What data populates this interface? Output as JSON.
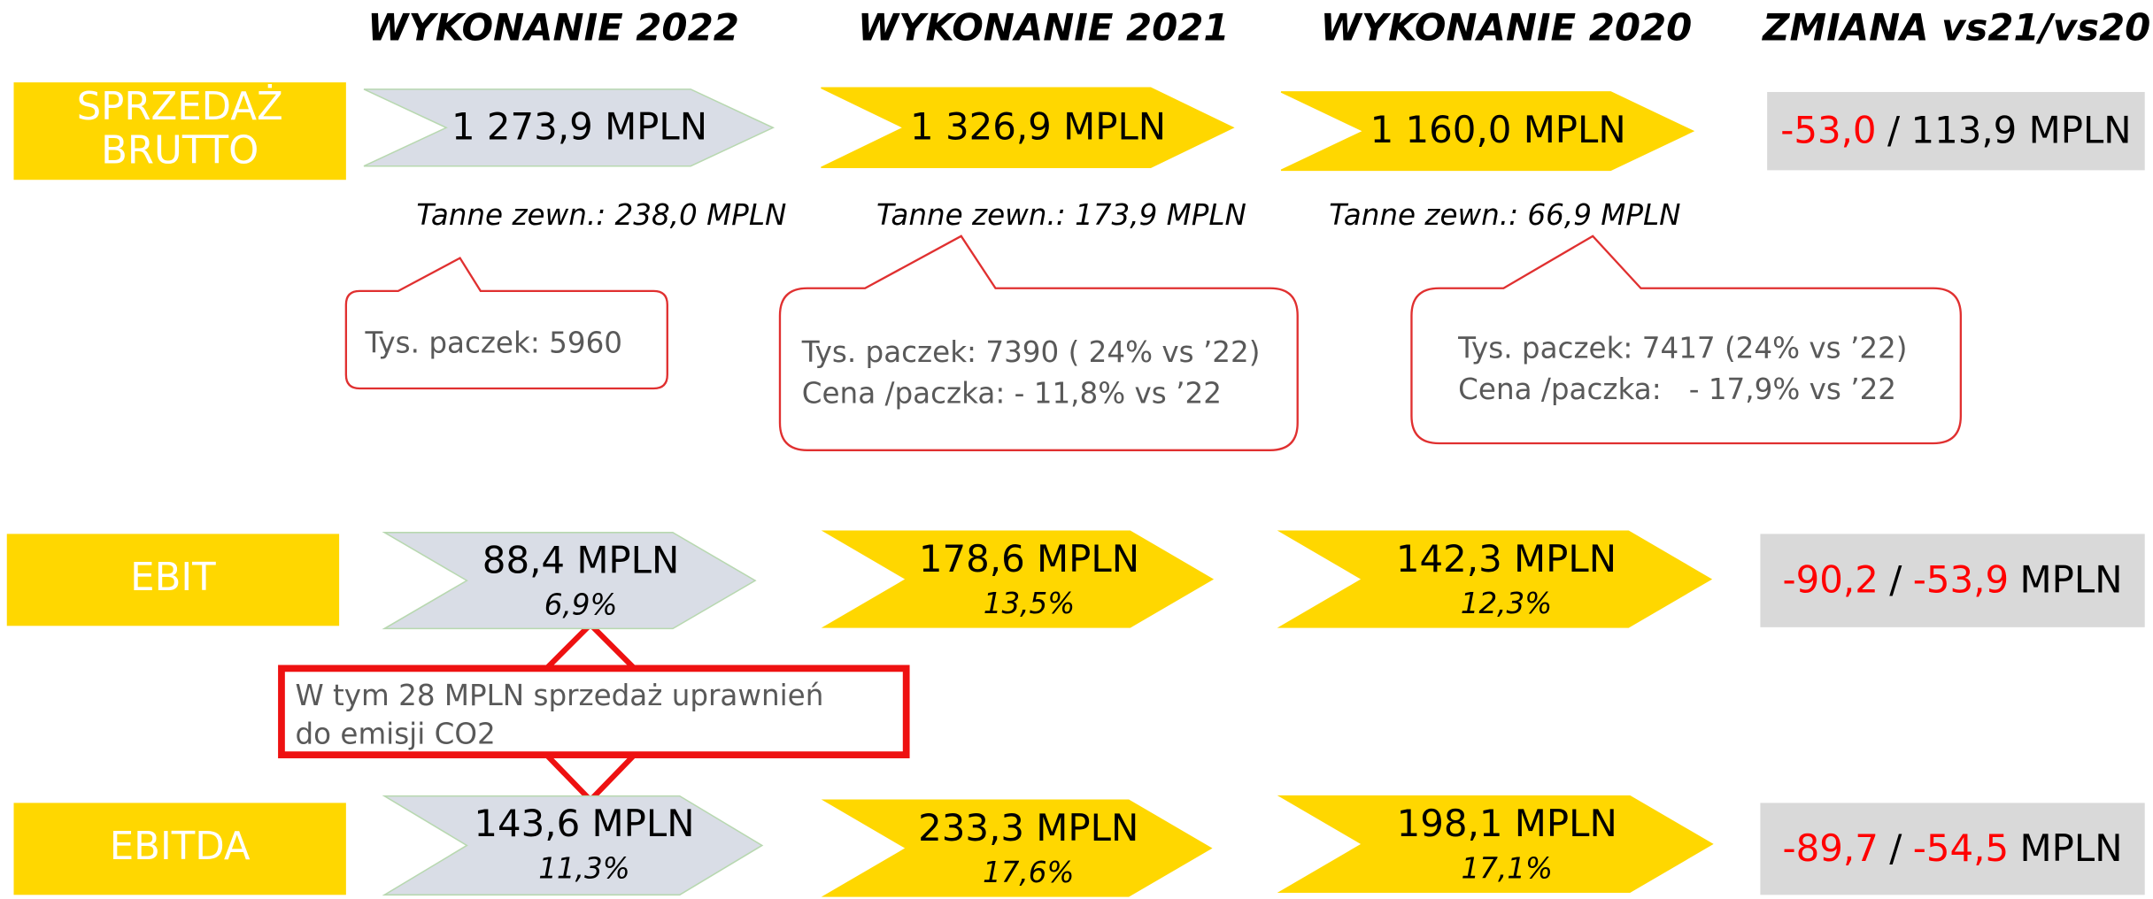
{
  "headers": [
    "WYKONANIE 2022",
    "WYKONANIE 2021",
    "WYKONANIE 2020",
    "ZMIANA vs21/vs20"
  ],
  "rows": [
    {
      "label": [
        "SPRZEDAŻ",
        "BRUTTO"
      ],
      "cells": [
        {
          "value": "1 273,9 MPLN",
          "color": "#d9dde6"
        },
        {
          "value": "1 326,9 MPLN",
          "color": "#ffd700"
        },
        {
          "value": "1 160,0 MPLN",
          "color": "#ffd700"
        }
      ],
      "change": [
        {
          "text": "-53,0",
          "color": "#ff0000"
        },
        {
          "text": "/",
          "color": "#000000"
        },
        {
          "text": "113,9 MPLN",
          "color": "#000000"
        }
      ]
    },
    {
      "label": [
        "EBIT"
      ],
      "cells": [
        {
          "value": "88,4 MPLN",
          "percent": "6,9%",
          "color": "#d9dde6"
        },
        {
          "value": "178,6 MPLN",
          "percent": "13,5%",
          "color": "#ffd700"
        },
        {
          "value": "142,3 MPLN",
          "percent": "12,3%",
          "color": "#ffd700"
        }
      ],
      "change": [
        {
          "text": "-90,2",
          "color": "#ff0000"
        },
        {
          "text": "/",
          "color": "#000000"
        },
        {
          "text": "-53,9",
          "color": "#ff0000"
        },
        {
          "text": "MPLN",
          "color": "#000000"
        }
      ]
    },
    {
      "label": [
        "EBITDA"
      ],
      "cells": [
        {
          "value": "143,6 MPLN",
          "percent": "11,3%",
          "color": "#d9dde6"
        },
        {
          "value": "233,3 MPLN",
          "percent": "17,6%",
          "color": "#ffd700"
        },
        {
          "value": "198,1 MPLN",
          "percent": "17,1%",
          "color": "#ffd700"
        }
      ],
      "change": [
        {
          "text": "-89,7",
          "color": "#ff0000"
        },
        {
          "text": "/",
          "color": "#000000"
        },
        {
          "text": "-54,5",
          "color": "#ff0000"
        },
        {
          "text": "MPLN",
          "color": "#000000"
        }
      ]
    }
  ],
  "notes": [
    "Tanne zewn.: 238,0 MPLN",
    "Tanne zewn.: 173,9 MPLN",
    "Tanne zewn.: 66,9 MPLN"
  ],
  "callouts": [
    [
      "Tys. paczek: 5960"
    ],
    [
      "Tys. paczek: 7390 ( 24% vs ’22)",
      "Cena /paczka: - 11,8% vs ’22"
    ],
    [
      "Tys. paczek: 7417 (24% vs ’22)",
      "Cena /paczka:   - 17,9% vs ’22"
    ]
  ],
  "remark": [
    "W tym 28 MPLN sprzedaż uprawnień",
    "do emisji CO2"
  ]
}
